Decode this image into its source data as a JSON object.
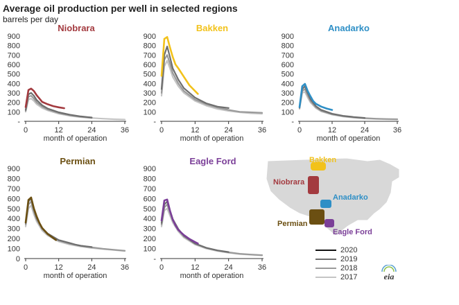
{
  "page": {
    "title": "Average oil production per well in selected regions",
    "subtitle": "barrels per day",
    "logo_text": "eia",
    "colors": {
      "axis": "#333333",
      "year2020": "#111111",
      "year2019": "#6e6e6e",
      "year2018": "#9a9a9a",
      "year2017": "#c4c4c4"
    }
  },
  "legend": [
    {
      "label": "2020",
      "color": "#111111"
    },
    {
      "label": "2019",
      "color": "#6e6e6e"
    },
    {
      "label": "2018",
      "color": "#9a9a9a"
    },
    {
      "label": "2017",
      "color": "#c4c4c4"
    }
  ],
  "map": {
    "labels": [
      {
        "name": "Bakken",
        "color": "#f2c21b"
      },
      {
        "name": "Niobrara",
        "color": "#a33a3f"
      },
      {
        "name": "Anadarko",
        "color": "#2e8fc6"
      },
      {
        "name": "Permian",
        "color": "#6b4f12"
      },
      {
        "name": "Eagle Ford",
        "color": "#7b3f98"
      }
    ]
  },
  "chart_data": [
    {
      "type": "line",
      "title": "Niobrara",
      "title_color": "#a33a3f",
      "xlabel": "month of operation",
      "ylabel": "barrels per day",
      "xlim": [
        0,
        36
      ],
      "ylim": [
        0,
        900
      ],
      "xticks": [
        "0",
        "12",
        "24",
        "36"
      ],
      "yticks": [
        "-",
        "100",
        "200",
        "300",
        "400",
        "500",
        "600",
        "700",
        "800",
        "900"
      ],
      "series": [
        {
          "name": "2017",
          "color": "#c4c4c4",
          "x": [
            0,
            1,
            2,
            3,
            4,
            6,
            8,
            12,
            16,
            20,
            24,
            28,
            32,
            36
          ],
          "y": [
            100,
            230,
            240,
            215,
            180,
            140,
            115,
            80,
            58,
            44,
            35,
            28,
            22,
            18
          ]
        },
        {
          "name": "2018",
          "color": "#9a9a9a",
          "x": [
            0,
            1,
            2,
            3,
            4,
            6,
            8,
            12,
            16,
            20,
            24
          ],
          "y": [
            110,
            260,
            270,
            240,
            200,
            155,
            125,
            88,
            64,
            48,
            36
          ]
        },
        {
          "name": "2019",
          "color": "#6e6e6e",
          "x": [
            0,
            1,
            2,
            3,
            4,
            6,
            8,
            12,
            16,
            20,
            24
          ],
          "y": [
            120,
            285,
            300,
            270,
            225,
            170,
            135,
            95,
            70,
            52,
            40
          ]
        },
        {
          "name": "2020",
          "color": "#a33a3f",
          "x": [
            0,
            1,
            2,
            3,
            4,
            5,
            6,
            8,
            10,
            12,
            14
          ],
          "y": [
            150,
            330,
            345,
            320,
            275,
            240,
            205,
            180,
            160,
            148,
            138
          ]
        }
      ]
    },
    {
      "type": "line",
      "title": "Bakken",
      "title_color": "#f2c21b",
      "xlabel": "month of operation",
      "ylabel": "barrels per day",
      "xlim": [
        0,
        36
      ],
      "ylim": [
        0,
        900
      ],
      "xticks": [
        "0",
        "12",
        "24",
        "36"
      ],
      "yticks": [
        "-",
        "100",
        "200",
        "300",
        "400",
        "500",
        "600",
        "700",
        "800",
        "900"
      ],
      "series": [
        {
          "name": "2017",
          "color": "#c4c4c4",
          "x": [
            0,
            1,
            2,
            3,
            4,
            6,
            8,
            12,
            16,
            20,
            24,
            28,
            32,
            36
          ],
          "y": [
            270,
            580,
            640,
            560,
            470,
            370,
            300,
            215,
            165,
            130,
            110,
            95,
            85,
            80
          ]
        },
        {
          "name": "2018",
          "color": "#9a9a9a",
          "x": [
            0,
            1,
            2,
            3,
            4,
            6,
            8,
            12,
            16,
            20,
            24,
            28,
            32,
            36
          ],
          "y": [
            300,
            650,
            700,
            610,
            510,
            400,
            320,
            230,
            180,
            145,
            120,
            100,
            95,
            90
          ]
        },
        {
          "name": "2019",
          "color": "#6e6e6e",
          "x": [
            0,
            1,
            2,
            3,
            4,
            6,
            8,
            12,
            16,
            20,
            24
          ],
          "y": [
            340,
            700,
            790,
            680,
            560,
            440,
            350,
            250,
            190,
            155,
            140
          ]
        },
        {
          "name": "2020",
          "color": "#f2c21b",
          "x": [
            0,
            1,
            2,
            3,
            4,
            5,
            6,
            8,
            10,
            12,
            13
          ],
          "y": [
            480,
            870,
            890,
            780,
            680,
            600,
            560,
            470,
            380,
            320,
            290
          ]
        }
      ]
    },
    {
      "type": "line",
      "title": "Anadarko",
      "title_color": "#2e8fc6",
      "xlabel": "month of operation",
      "ylabel": "barrels per day",
      "xlim": [
        0,
        36
      ],
      "ylim": [
        0,
        900
      ],
      "xticks": [
        "0",
        "12",
        "24",
        "36"
      ],
      "yticks": [
        "-",
        "100",
        "200",
        "300",
        "400",
        "500",
        "600",
        "700",
        "800",
        "900"
      ],
      "series": [
        {
          "name": "2017",
          "color": "#c4c4c4",
          "x": [
            0,
            1,
            2,
            3,
            4,
            6,
            8,
            12,
            16,
            20,
            24,
            28,
            32,
            36
          ],
          "y": [
            130,
            300,
            310,
            250,
            200,
            140,
            105,
            70,
            50,
            38,
            30,
            25,
            22,
            20
          ]
        },
        {
          "name": "2018",
          "color": "#9a9a9a",
          "x": [
            0,
            1,
            2,
            3,
            4,
            6,
            8,
            12,
            16,
            20,
            24,
            28,
            32,
            36
          ],
          "y": [
            140,
            320,
            340,
            275,
            215,
            150,
            110,
            75,
            55,
            42,
            34,
            28,
            24,
            22
          ]
        },
        {
          "name": "2019",
          "color": "#6e6e6e",
          "x": [
            0,
            1,
            2,
            3,
            4,
            6,
            8,
            12,
            16,
            20,
            24
          ],
          "y": [
            145,
            340,
            370,
            300,
            235,
            160,
            120,
            80,
            58,
            45,
            36
          ]
        },
        {
          "name": "2020",
          "color": "#2e8fc6",
          "x": [
            0,
            1,
            2,
            3,
            4,
            5,
            6,
            8,
            10,
            12
          ],
          "y": [
            150,
            370,
            395,
            320,
            265,
            215,
            185,
            155,
            135,
            120
          ]
        }
      ]
    },
    {
      "type": "line",
      "title": "Permian",
      "title_color": "#6b4f12",
      "xlabel": "month of operation",
      "ylabel": "barrels per day",
      "xlim": [
        0,
        36
      ],
      "ylim": [
        0,
        900
      ],
      "xticks": [
        "0",
        "12",
        "24",
        "36"
      ],
      "yticks": [
        "0",
        "100",
        "200",
        "300",
        "400",
        "500",
        "600",
        "700",
        "800",
        "900"
      ],
      "series": [
        {
          "name": "2017",
          "color": "#c4c4c4",
          "x": [
            0,
            1,
            2,
            3,
            4,
            6,
            8,
            12,
            16,
            20,
            24,
            28,
            32,
            36
          ],
          "y": [
            320,
            500,
            530,
            440,
            370,
            280,
            230,
            170,
            140,
            120,
            105,
            95,
            85,
            75
          ]
        },
        {
          "name": "2018",
          "color": "#9a9a9a",
          "x": [
            0,
            1,
            2,
            3,
            4,
            6,
            8,
            12,
            16,
            20,
            24,
            28,
            32,
            36
          ],
          "y": [
            340,
            540,
            570,
            470,
            390,
            295,
            240,
            180,
            148,
            128,
            112,
            98,
            88,
            78
          ]
        },
        {
          "name": "2019",
          "color": "#6e6e6e",
          "x": [
            0,
            1,
            2,
            3,
            4,
            6,
            8,
            12,
            16,
            18,
            20,
            24
          ],
          "y": [
            355,
            570,
            600,
            490,
            405,
            305,
            250,
            185,
            155,
            140,
            128,
            115
          ]
        },
        {
          "name": "2020",
          "color": "#6b4f12",
          "x": [
            0,
            1,
            2,
            3,
            4,
            5,
            6,
            8,
            10,
            11
          ],
          "y": [
            360,
            585,
            610,
            500,
            420,
            355,
            305,
            245,
            205,
            185
          ]
        }
      ]
    },
    {
      "type": "line",
      "title": "Eagle Ford",
      "title_color": "#7b3f98",
      "xlabel": "month of operation",
      "ylabel": "barrels per day",
      "xlim": [
        0,
        36
      ],
      "ylim": [
        0,
        900
      ],
      "xticks": [
        "0",
        "12",
        "24",
        "36"
      ],
      "yticks": [
        "-",
        "100",
        "200",
        "300",
        "400",
        "500",
        "600",
        "700",
        "800",
        "900"
      ],
      "series": [
        {
          "name": "2017",
          "color": "#c4c4c4",
          "x": [
            0,
            1,
            2,
            3,
            4,
            6,
            8,
            12,
            16,
            20,
            24,
            28,
            32,
            36
          ],
          "y": [
            320,
            480,
            500,
            430,
            360,
            270,
            210,
            140,
            100,
            75,
            58,
            45,
            38,
            32
          ]
        },
        {
          "name": "2018",
          "color": "#9a9a9a",
          "x": [
            0,
            1,
            2,
            3,
            4,
            6,
            8,
            12,
            16,
            20,
            24,
            28,
            32,
            36
          ],
          "y": [
            340,
            510,
            540,
            460,
            380,
            285,
            220,
            148,
            106,
            80,
            62,
            48,
            40,
            34
          ]
        },
        {
          "name": "2019",
          "color": "#6e6e6e",
          "x": [
            0,
            1,
            2,
            3,
            4,
            6,
            8,
            12,
            16,
            20,
            24
          ],
          "y": [
            355,
            540,
            570,
            480,
            395,
            295,
            228,
            150,
            108,
            82,
            65
          ]
        },
        {
          "name": "2020",
          "color": "#7b3f98",
          "x": [
            0,
            1,
            2,
            3,
            4,
            5,
            6,
            8,
            10,
            12,
            13
          ],
          "y": [
            380,
            580,
            590,
            480,
            390,
            330,
            285,
            235,
            195,
            165,
            150
          ]
        }
      ]
    }
  ]
}
